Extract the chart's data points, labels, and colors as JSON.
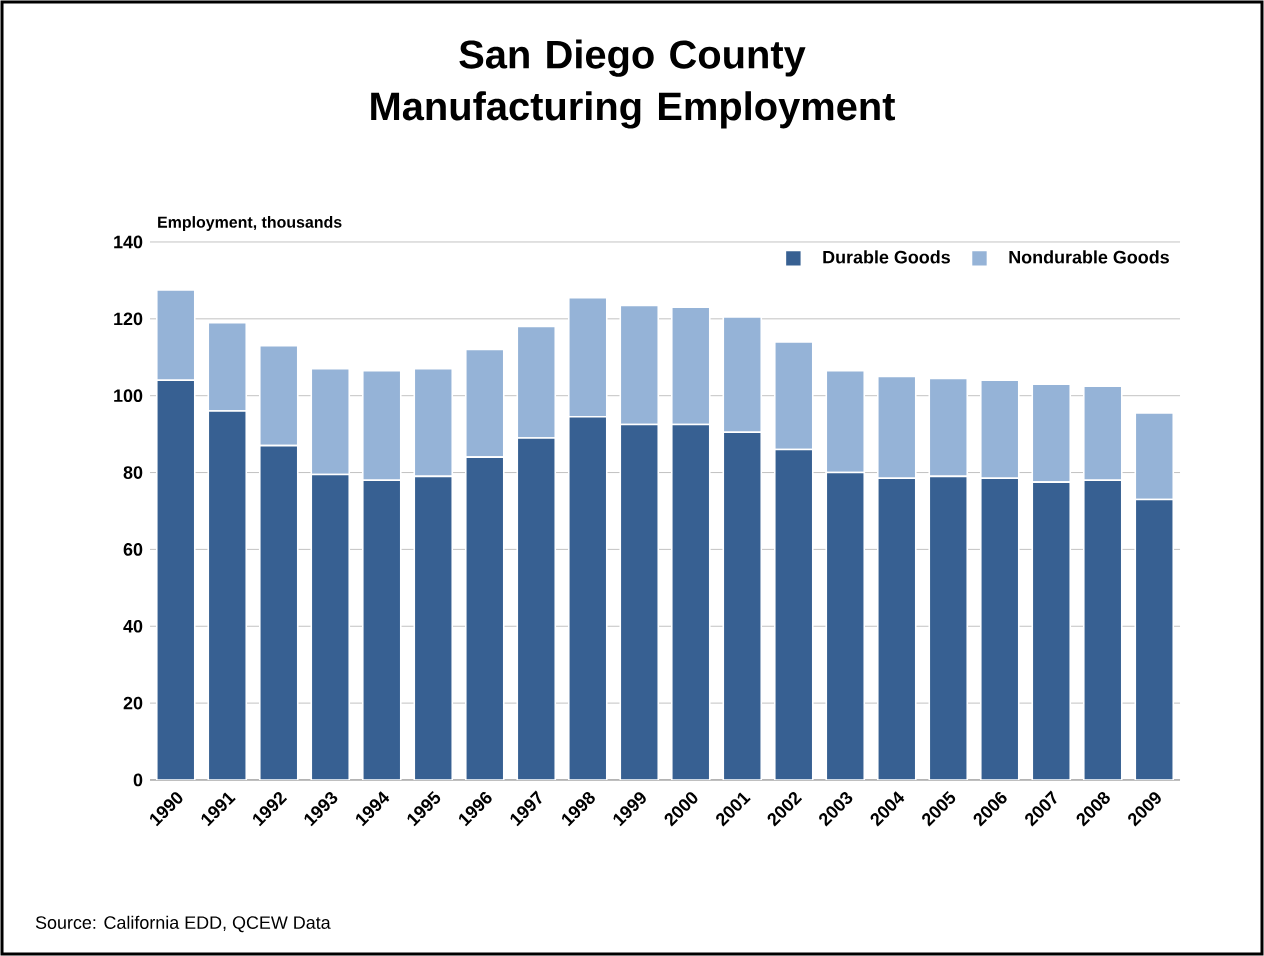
{
  "chart_data": {
    "type": "bar",
    "stacked": true,
    "title": "San Diego County\nManufacturing Employment",
    "ylabel": "Employment, thousands",
    "categories": [
      "1990",
      "1991",
      "1992",
      "1993",
      "1994",
      "1995",
      "1996",
      "1997",
      "1998",
      "1999",
      "2000",
      "2001",
      "2002",
      "2003",
      "2004",
      "2005",
      "2006",
      "2007",
      "2008",
      "2009"
    ],
    "series": [
      {
        "name": "Durable Goods",
        "color": "#376092",
        "values": [
          104,
          96,
          87,
          79.5,
          78,
          79,
          84,
          89,
          94.5,
          92.5,
          92.5,
          90.5,
          86,
          80,
          78.5,
          79,
          78.5,
          77.5,
          78,
          73
        ]
      },
      {
        "name": "Nondurable Goods",
        "color": "#95b3d7",
        "values": [
          23.5,
          23,
          26,
          27.5,
          28.5,
          28,
          28,
          29,
          31,
          31,
          30.5,
          30,
          28,
          26.5,
          26.5,
          25.5,
          25.5,
          25.5,
          24.5,
          22.5
        ]
      }
    ],
    "ylim": [
      0,
      140
    ],
    "yticks": [
      0,
      20,
      40,
      60,
      80,
      100,
      120,
      140
    ],
    "grid": "y",
    "legend": "top right",
    "annotations": [
      "Source:  California EDD, QCEW Data"
    ]
  }
}
